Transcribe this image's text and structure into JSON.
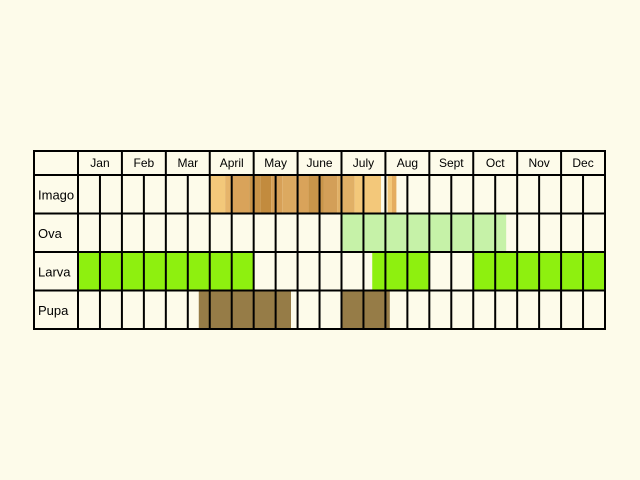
{
  "colors": {
    "background": "#fdfbea",
    "cell": "#fdfbea",
    "grid": "#000000"
  },
  "months": [
    "Jan",
    "Feb",
    "Mar",
    "April",
    "May",
    "June",
    "July",
    "Aug",
    "Sept",
    "Oct",
    "Nov",
    "Dec"
  ],
  "rows": [
    {
      "label": "Imago",
      "segments": [
        {
          "start": 6.0,
          "end": 6.7,
          "color": "#f3c87a"
        },
        {
          "start": 6.7,
          "end": 7.0,
          "color": "#e6b46a"
        },
        {
          "start": 7.0,
          "end": 7.8,
          "color": "#d9a35a"
        },
        {
          "start": 7.8,
          "end": 8.3,
          "color": "#ca9448"
        },
        {
          "start": 8.3,
          "end": 8.8,
          "color": "#c28b3e"
        },
        {
          "start": 8.8,
          "end": 9.3,
          "color": "#d7a057"
        },
        {
          "start": 9.3,
          "end": 9.9,
          "color": "#dca960"
        },
        {
          "start": 9.9,
          "end": 10.5,
          "color": "#d9a35a"
        },
        {
          "start": 10.5,
          "end": 11.2,
          "color": "#c9954a"
        },
        {
          "start": 11.2,
          "end": 11.8,
          "color": "#d39f58"
        },
        {
          "start": 11.8,
          "end": 12.6,
          "color": "#e1b066"
        },
        {
          "start": 12.6,
          "end": 13.8,
          "color": "#f3c87a"
        },
        {
          "start": 14.1,
          "end": 14.3,
          "color": "#f3c87a"
        },
        {
          "start": 14.3,
          "end": 14.5,
          "color": "#e5ad60"
        }
      ]
    },
    {
      "label": "Ova",
      "segments": [
        {
          "start": 12.0,
          "end": 19.5,
          "color": "#c6f2a8"
        }
      ]
    },
    {
      "label": "Larva",
      "segments": [
        {
          "start": 0.0,
          "end": 8.0,
          "color": "#8ef00f"
        },
        {
          "start": 13.4,
          "end": 14.0,
          "color": "#8ef00f"
        },
        {
          "start": 14.0,
          "end": 16.0,
          "color": "#8ef00f"
        },
        {
          "start": 18.0,
          "end": 24.0,
          "color": "#8ef00f"
        }
      ]
    },
    {
      "label": "Pupa",
      "segments": [
        {
          "start": 5.5,
          "end": 9.7,
          "color": "#967c47"
        },
        {
          "start": 12.0,
          "end": 14.2,
          "color": "#967c47"
        }
      ]
    }
  ]
}
